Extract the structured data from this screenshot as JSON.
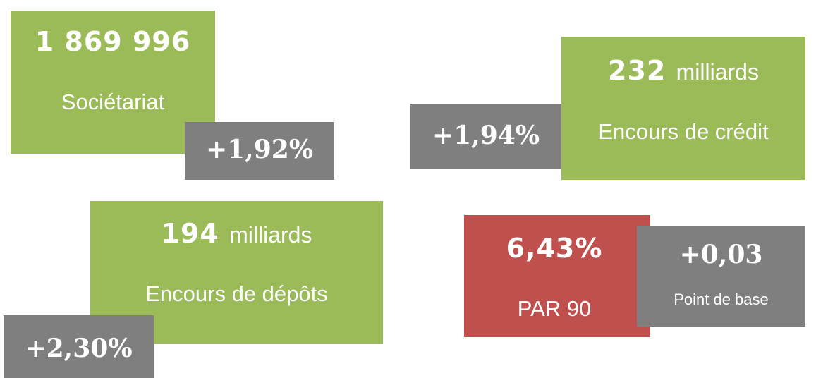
{
  "cards": [
    {
      "value": "1 869 996",
      "label": "Sociétariat",
      "change": "+1,92%"
    },
    {
      "value": "232",
      "unit": "milliards",
      "label": "Encours de crédit",
      "change": "+1,94%"
    },
    {
      "value": "194",
      "unit": "milliards",
      "label": "Encours de dépôts",
      "change": "+2,30%"
    },
    {
      "value": "6,43%",
      "label": "PAR 90",
      "change": "+0,03",
      "change_label": "Point de base"
    }
  ]
}
